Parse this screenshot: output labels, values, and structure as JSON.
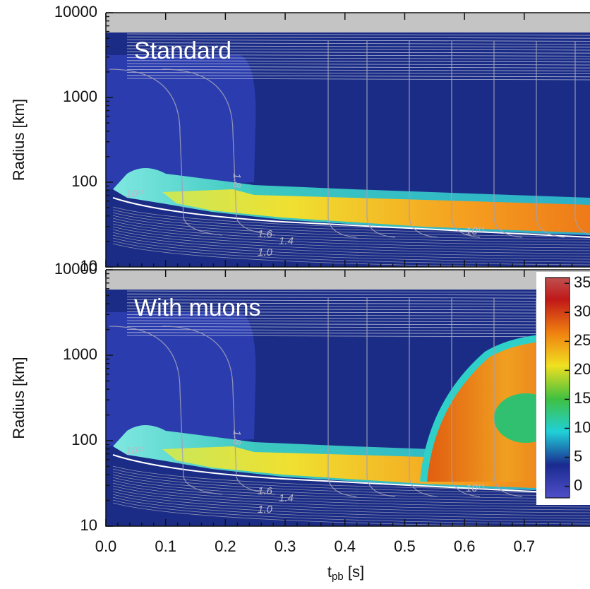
{
  "chart_data": [
    {
      "type": "heatmap",
      "title": "Standard",
      "ylabel": "Radius [km]",
      "ylog": true,
      "xlim": [
        0,
        0.81
      ],
      "xticks": [
        0.0,
        0.1,
        0.2,
        0.3,
        0.4,
        0.5,
        0.6,
        0.7
      ],
      "ylim": [
        10,
        10000
      ],
      "yticks": [
        10,
        100,
        1000,
        10000
      ],
      "annotations": [
        "10¹¹",
        "10¹¹",
        "1.8",
        "1.6",
        "1.4",
        "1.0"
      ]
    },
    {
      "type": "heatmap",
      "title": "With muons",
      "ylabel": "Radius [km]",
      "ylog": true,
      "xlabel": {
        "main": "t",
        "sub": "pb",
        "unit": " [s]"
      },
      "xlim": [
        0,
        0.81
      ],
      "xticks": [
        {
          "value": 0,
          "label": "0.0"
        },
        0.1,
        0.2,
        0.3,
        0.4,
        0.5,
        0.6,
        0.7
      ],
      "ylim": [
        10,
        10000
      ],
      "yticks": [
        10,
        100,
        1000,
        10000
      ],
      "annotations": [
        "10¹¹",
        "10¹¹",
        "1.8",
        "1.6",
        "1.4",
        "1.0"
      ],
      "colorbar": {
        "clim": [
          -2,
          36
        ],
        "ticks": [
          0,
          5,
          10,
          15,
          20,
          25,
          30,
          35
        ]
      }
    }
  ]
}
